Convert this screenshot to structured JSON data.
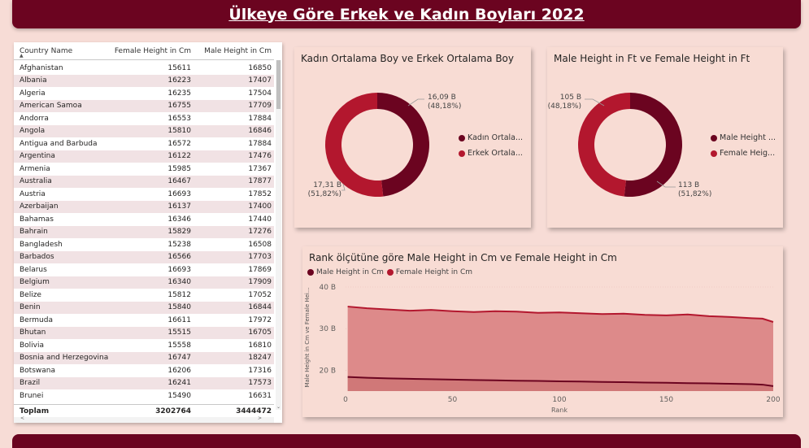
{
  "header": {
    "title": "Ülkeye Göre Erkek ve Kadın Boyları 2022"
  },
  "colors": {
    "male": "#6b0420",
    "female": "#b3172e",
    "background": "#f7dcd6",
    "card": "#f8dcd4",
    "area_fill": "#dd8a8a"
  },
  "table": {
    "columns": [
      "Country Name",
      "Female Height in Cm",
      "Male Height in Cm"
    ],
    "rows": [
      [
        "Afghanistan",
        "15611",
        "16850"
      ],
      [
        "Albania",
        "16223",
        "17407"
      ],
      [
        "Algeria",
        "16235",
        "17504"
      ],
      [
        "American Samoa",
        "16755",
        "17709"
      ],
      [
        "Andorra",
        "16553",
        "17884"
      ],
      [
        "Angola",
        "15810",
        "16846"
      ],
      [
        "Antigua and Barbuda",
        "16572",
        "17884"
      ],
      [
        "Argentina",
        "16122",
        "17476"
      ],
      [
        "Armenia",
        "15985",
        "17367"
      ],
      [
        "Australia",
        "16467",
        "17877"
      ],
      [
        "Austria",
        "16693",
        "17852"
      ],
      [
        "Azerbaijan",
        "16137",
        "17400"
      ],
      [
        "Bahamas",
        "16346",
        "17440"
      ],
      [
        "Bahrain",
        "15829",
        "17276"
      ],
      [
        "Bangladesh",
        "15238",
        "16508"
      ],
      [
        "Barbados",
        "16566",
        "17703"
      ],
      [
        "Belarus",
        "16693",
        "17869"
      ],
      [
        "Belgium",
        "16340",
        "17909"
      ],
      [
        "Belize",
        "15812",
        "17052"
      ],
      [
        "Benin",
        "15840",
        "16844"
      ],
      [
        "Bermuda",
        "16611",
        "17972"
      ],
      [
        "Bhutan",
        "15515",
        "16705"
      ],
      [
        "Bolivia",
        "15558",
        "16810"
      ],
      [
        "Bosnia and Herzegovina",
        "16747",
        "18247"
      ],
      [
        "Botswana",
        "16206",
        "17316"
      ],
      [
        "Brazil",
        "16241",
        "17573"
      ],
      [
        "Brunei",
        "15490",
        "16631"
      ]
    ],
    "total": {
      "label": "Toplam",
      "female": "3202764",
      "male": "3444472"
    }
  },
  "donut1": {
    "title": "Kadın Ortalama Boy ve Erkek Ortalama Boy",
    "slices": [
      {
        "label_value": "16,09 B",
        "label_pct": "(48,18%)",
        "fraction": 0.4818,
        "color": "#6b0420"
      },
      {
        "label_value": "17,31 B",
        "label_pct": "(51,82%)",
        "fraction": 0.5182,
        "color": "#b3172e"
      }
    ],
    "legend": [
      "Kadın Ortala...",
      "Erkek Ortala..."
    ]
  },
  "donut2": {
    "title": "Male Height in Ft ve Female Height in Ft",
    "slices": [
      {
        "label_value": "113 B",
        "label_pct": "(51,82%)",
        "fraction": 0.5182,
        "color": "#6b0420"
      },
      {
        "label_value": "105 B",
        "label_pct": "(48,18%)",
        "fraction": 0.4818,
        "color": "#b3172e"
      }
    ],
    "legend": [
      "Male Height ...",
      "Female Heig..."
    ]
  },
  "area_chart": {
    "title": "Rank ölçütüne göre Male Height in Cm ve Female Height in Cm",
    "legend": [
      "Male Height in Cm",
      "Female Height in Cm"
    ],
    "ytitle": "Male Height in Cm ve Female Hei...",
    "xlabel": "Rank",
    "x_ticks": [
      "0",
      "50",
      "100",
      "150",
      "200"
    ],
    "y_ticks": [
      "20 B",
      "30 B",
      "40 B"
    ]
  },
  "chart_data": {
    "type": "area",
    "title": "Rank ölçütüne göre Male Height in Cm ve Female Height in Cm",
    "xlabel": "Rank",
    "ylabel": "Male Height in Cm ve Female Hei...",
    "xlim": [
      0,
      200
    ],
    "ylim": [
      15,
      40
    ],
    "y_unit": "B",
    "x": [
      1,
      10,
      20,
      30,
      40,
      50,
      60,
      70,
      80,
      90,
      100,
      110,
      120,
      130,
      140,
      150,
      160,
      170,
      180,
      190,
      195,
      200
    ],
    "series": [
      {
        "name": "Male Height in Cm",
        "values": [
          18.4,
          18.2,
          18.05,
          17.95,
          17.85,
          17.75,
          17.65,
          17.6,
          17.5,
          17.45,
          17.35,
          17.3,
          17.2,
          17.15,
          17.05,
          17.0,
          16.9,
          16.85,
          16.75,
          16.65,
          16.55,
          16.2
        ]
      },
      {
        "name": "Female Height in Cm",
        "values": [
          35.3,
          34.9,
          34.6,
          34.3,
          34.5,
          34.2,
          34.0,
          34.2,
          34.1,
          33.8,
          33.9,
          33.7,
          33.5,
          33.6,
          33.3,
          33.2,
          33.4,
          33.0,
          32.8,
          32.5,
          32.4,
          31.6
        ]
      }
    ]
  }
}
